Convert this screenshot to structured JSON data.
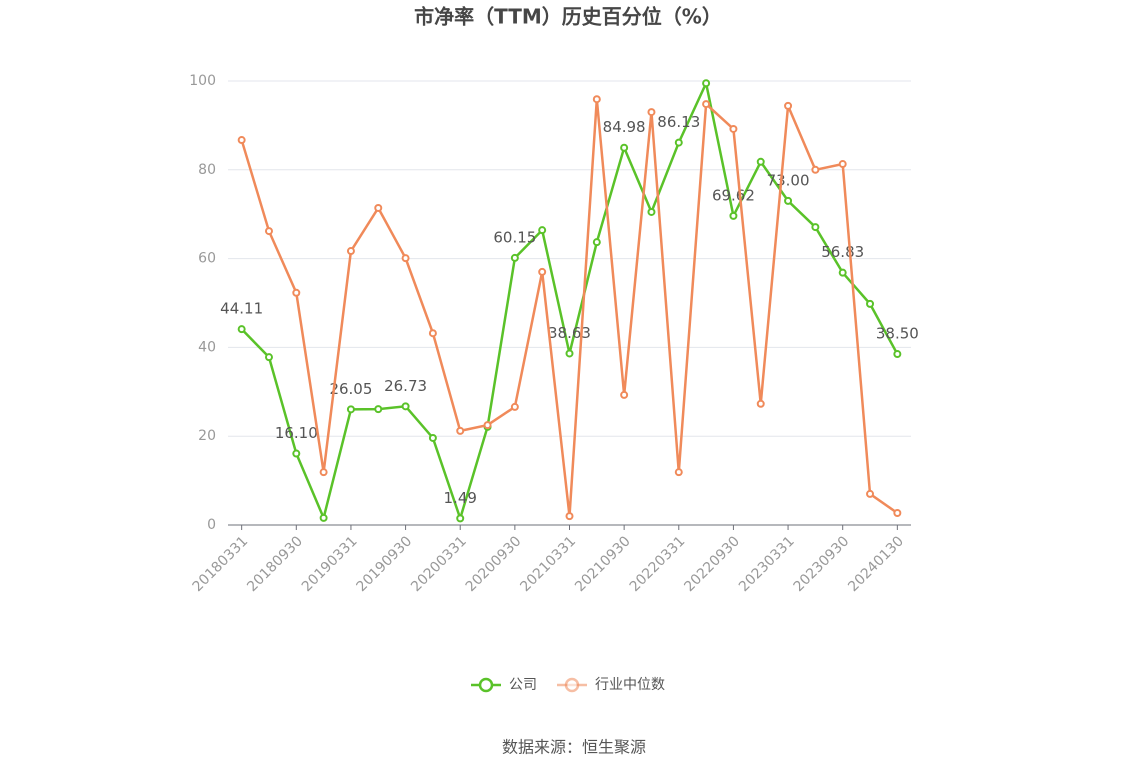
{
  "chart_data": {
    "type": "line",
    "title": "市净率（TTM）历史百分位（%）",
    "source": "数据来源：恒生聚源",
    "categories": [
      "20180331",
      null,
      "20180930",
      null,
      "20190331",
      null,
      "20190930",
      null,
      "20200331",
      null,
      "20200930",
      null,
      "20210331",
      null,
      "20210930",
      null,
      "20220331",
      null,
      "20220930",
      null,
      "20230331",
      null,
      "20230930",
      null,
      "20240130"
    ],
    "ylim": [
      0,
      100
    ],
    "yticks": [
      0,
      20,
      40,
      60,
      80,
      100
    ],
    "grid": true,
    "legend": "bottom",
    "series": [
      {
        "name": "公司",
        "color": "#5ac229",
        "values": [
          44.11,
          37.8,
          16.1,
          1.6,
          26.05,
          26.1,
          26.73,
          19.6,
          1.49,
          22.1,
          60.15,
          66.4,
          38.63,
          63.7,
          84.98,
          70.5,
          86.13,
          99.5,
          69.62,
          81.8,
          73.0,
          67.1,
          56.83,
          49.8,
          38.5
        ],
        "value_labels": [
          "44.11",
          null,
          "16.10",
          null,
          "26.05",
          null,
          "26.73",
          null,
          "1.49",
          null,
          "60.15",
          null,
          "38.63",
          null,
          "84.98",
          null,
          "86.13",
          null,
          "69.62",
          null,
          "73.00",
          null,
          "56.83",
          null,
          "38.50"
        ]
      },
      {
        "name": "行业中位数",
        "color": "#f08a5a",
        "values": [
          86.7,
          66.2,
          52.3,
          11.9,
          61.7,
          71.4,
          60.1,
          43.2,
          21.2,
          22.5,
          26.6,
          57.0,
          2.0,
          95.9,
          29.3,
          93.0,
          11.9,
          94.8,
          89.2,
          27.3,
          94.4,
          80.0,
          81.3,
          7.0,
          2.7
        ]
      }
    ]
  }
}
